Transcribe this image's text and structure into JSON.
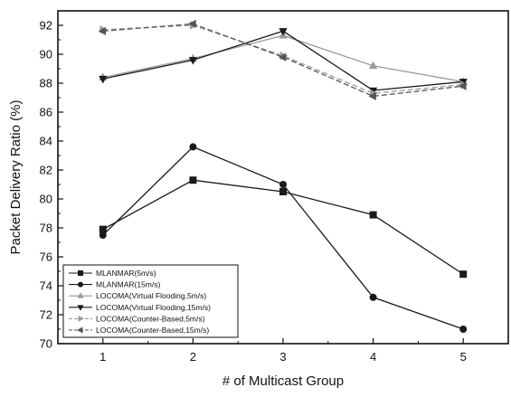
{
  "chart_data": {
    "type": "line",
    "title": "",
    "xlabel": "# of Multicast Group",
    "ylabel": "Packet Delivery Ratio (%)",
    "x": [
      1,
      2,
      3,
      4,
      5
    ],
    "xlim": [
      0.5,
      5.5
    ],
    "ylim": [
      70,
      93
    ],
    "xticks": [
      "1",
      "2",
      "3",
      "4",
      "5"
    ],
    "yticks": [
      "70",
      "72",
      "74",
      "76",
      "78",
      "80",
      "82",
      "84",
      "86",
      "88",
      "90",
      "92"
    ],
    "grid": false,
    "legend_position": "bottom-left",
    "series": [
      {
        "name": "MLANMAR(5m/s)",
        "values": [
          77.9,
          81.3,
          80.5,
          78.9,
          74.8
        ],
        "marker": "square",
        "color": "#1a1a1a",
        "dash": "solid"
      },
      {
        "name": "MLANMAR(15m/s)",
        "values": [
          77.5,
          83.6,
          81.0,
          73.2,
          71.0
        ],
        "marker": "circle",
        "color": "#1a1a1a",
        "dash": "solid"
      },
      {
        "name": "LOCOMA(Virtual Flooding,5m/s)",
        "values": [
          88.4,
          89.7,
          91.3,
          89.2,
          88.1
        ],
        "marker": "triangle-up",
        "color": "#9a9a9a",
        "dash": "solid"
      },
      {
        "name": "LOCOMA(Virtual Flooding,15m/s)",
        "values": [
          88.3,
          89.6,
          91.6,
          87.5,
          88.1
        ],
        "marker": "triangle-down",
        "color": "#1a1a1a",
        "dash": "solid"
      },
      {
        "name": "LOCOMA(Counter-Based,5m/s)",
        "values": [
          91.7,
          92.0,
          89.9,
          87.3,
          87.9
        ],
        "marker": "triangle-right",
        "color": "#9a9a9a",
        "dash": "dashed"
      },
      {
        "name": "LOCOMA(Counter-Based,15m/s)",
        "values": [
          91.6,
          92.1,
          89.8,
          87.1,
          87.8
        ],
        "marker": "triangle-left",
        "color": "#555555",
        "dash": "dashed"
      }
    ]
  }
}
